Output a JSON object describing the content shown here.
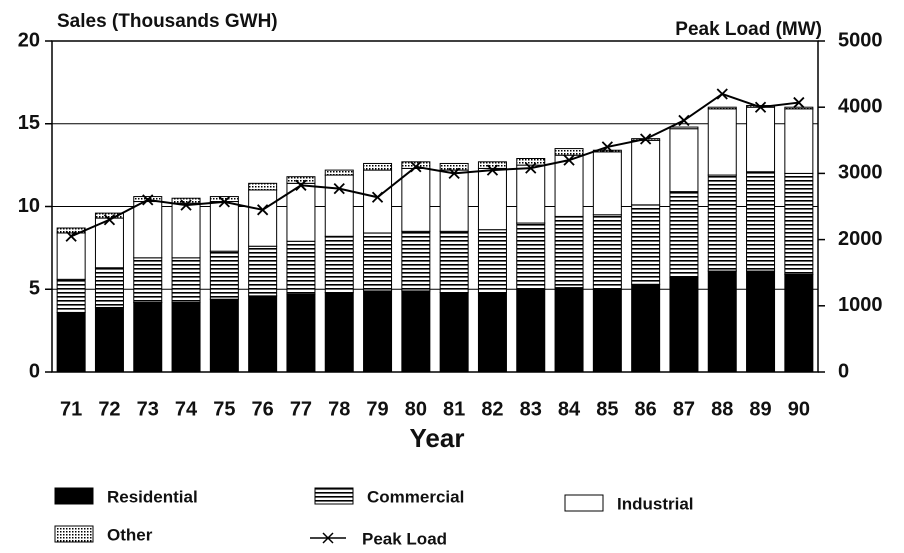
{
  "chart_data": {
    "type": "bar",
    "stacked": true,
    "y_label": "Sales (Thousands GWH)",
    "y2_label": "Peak Load (MW)",
    "x_label": "Year",
    "categories": [
      "71",
      "72",
      "73",
      "74",
      "75",
      "76",
      "77",
      "78",
      "79",
      "80",
      "81",
      "82",
      "83",
      "84",
      "85",
      "86",
      "87",
      "88",
      "89",
      "90"
    ],
    "series": [
      {
        "name": "Residential",
        "color": "#000000",
        "pattern": "solid",
        "values": [
          3.6,
          3.9,
          4.2,
          4.2,
          4.4,
          4.6,
          4.7,
          4.8,
          4.9,
          4.9,
          4.8,
          4.8,
          5.0,
          5.1,
          5.0,
          5.3,
          5.7,
          6.1,
          6.1,
          5.9
        ]
      },
      {
        "name": "Commercial",
        "color": "#000000",
        "pattern": "lines",
        "values": [
          2.0,
          2.4,
          2.7,
          2.7,
          2.9,
          3.0,
          3.2,
          3.4,
          3.5,
          3.6,
          3.7,
          3.8,
          4.0,
          4.3,
          4.5,
          4.8,
          5.2,
          5.8,
          6.0,
          6.1
        ]
      },
      {
        "name": "Industrial",
        "color": "#000000",
        "pattern": "blank",
        "values": [
          2.8,
          3.0,
          3.4,
          3.3,
          3.0,
          3.4,
          3.5,
          3.7,
          3.8,
          3.8,
          3.7,
          3.7,
          3.5,
          3.7,
          3.8,
          3.9,
          3.8,
          4.0,
          3.9,
          3.9
        ]
      },
      {
        "name": "Other",
        "color": "#000000",
        "pattern": "dots",
        "values": [
          0.3,
          0.3,
          0.3,
          0.3,
          0.3,
          0.4,
          0.4,
          0.3,
          0.4,
          0.4,
          0.4,
          0.4,
          0.4,
          0.4,
          0.1,
          0.1,
          0.1,
          0.1,
          0.1,
          0.1
        ]
      },
      {
        "name": "Peak Load",
        "type": "line",
        "axis": "y2",
        "color": "#000000",
        "values": [
          2050,
          2300,
          2600,
          2520,
          2570,
          2450,
          2820,
          2770,
          2640,
          3100,
          3000,
          3050,
          3080,
          3200,
          3400,
          3520,
          3800,
          4200,
          4000,
          4070
        ]
      }
    ],
    "ylim": [
      0,
      20
    ],
    "yticks": [
      0,
      5,
      10,
      15,
      20
    ],
    "y2lim": [
      0,
      5000
    ],
    "y2ticks": [
      0,
      1000,
      2000,
      3000,
      4000,
      5000
    ],
    "grid": true
  }
}
